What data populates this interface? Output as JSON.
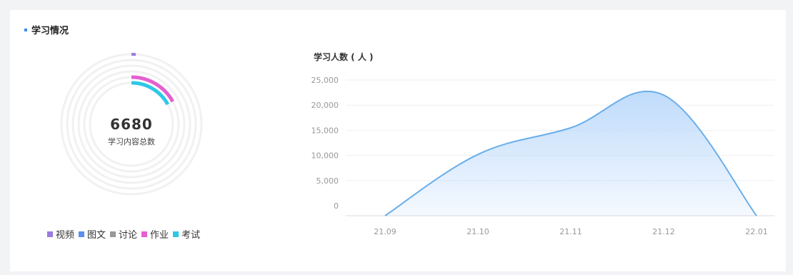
{
  "card": {
    "title": "学习情况"
  },
  "summary": {
    "total": "6680",
    "total_label": "学习内容总数"
  },
  "legend": [
    {
      "label": "视频",
      "color": "#9b7be0"
    },
    {
      "label": "图文",
      "color": "#5b8ff0"
    },
    {
      "label": "讨论",
      "color": "#999999"
    },
    {
      "label": "作业",
      "color": "#e45fcf"
    },
    {
      "label": "考试",
      "color": "#2ec7e6"
    }
  ],
  "donut_data": {
    "type": "radial-bar",
    "series": [
      {
        "label": "视频",
        "fraction": 0.01,
        "color": "#9b7be0"
      },
      {
        "label": "图文",
        "fraction": 0.0,
        "color": "#5b8ff0"
      },
      {
        "label": "讨论",
        "fraction": 0.0,
        "color": "#999999"
      },
      {
        "label": "作业",
        "fraction": 0.17,
        "color": "#e45fcf"
      },
      {
        "label": "考试",
        "fraction": 0.17,
        "color": "#2ec7e6"
      }
    ]
  },
  "chart_data": {
    "type": "area",
    "title": "",
    "ylabel": "学习人数 ( 人 )",
    "xlabel": "",
    "x": [
      "21.09",
      "21.10",
      "21.11",
      "21.12",
      "22.01"
    ],
    "y": [
      0,
      10200,
      15500,
      22000,
      0
    ],
    "ylim": [
      0,
      25000
    ],
    "yticks": [
      "0",
      "5,000",
      "10,000",
      "15,000",
      "20,000",
      "25,000"
    ],
    "yticks_values": [
      0,
      5000,
      10000,
      15000,
      20000,
      25000
    ],
    "line_color": "#6aaeea",
    "fill_color": "#bcd9fb",
    "grid": true
  }
}
